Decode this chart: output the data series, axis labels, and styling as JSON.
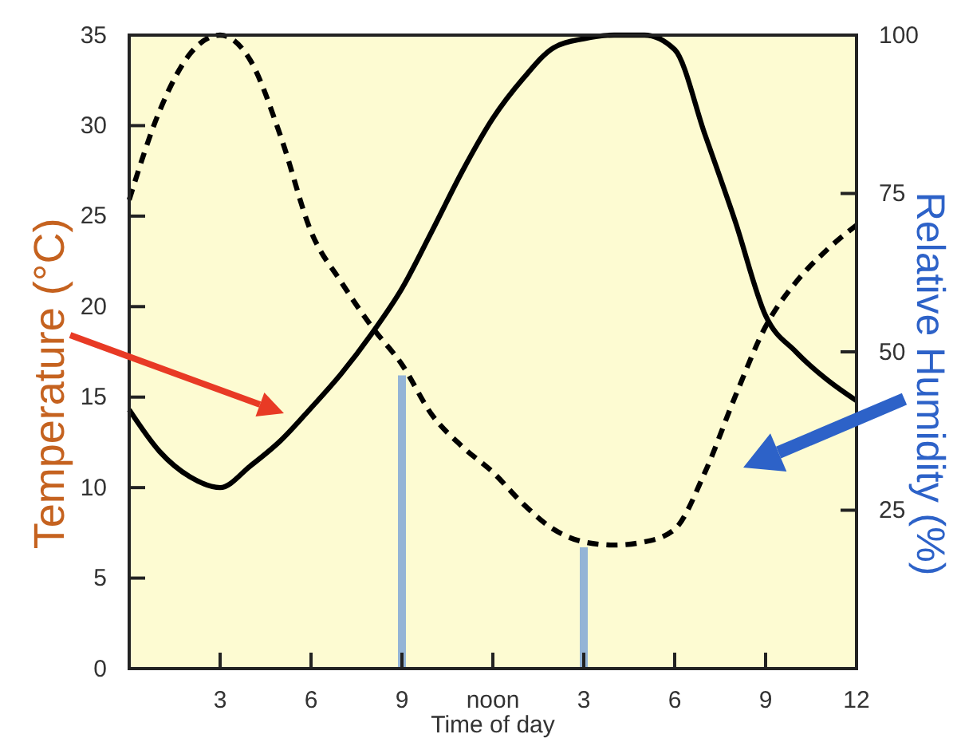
{
  "chart_data": {
    "type": "line",
    "xlabel": "Time of day",
    "ylabel": "Temperature (°C)",
    "y2label": "Relative Humidity (%)",
    "categories": [
      null,
      null,
      null,
      "3",
      null,
      null,
      "6",
      null,
      null,
      "9",
      null,
      null,
      "noon",
      null,
      null,
      "3",
      null,
      null,
      "6",
      null,
      null,
      "9",
      null,
      null,
      "12"
    ],
    "ylim": [
      0,
      35
    ],
    "yticks": [
      0,
      5,
      10,
      15,
      20,
      25,
      30,
      35
    ],
    "y2lim": [
      0,
      100
    ],
    "y2ticks": [
      25,
      50,
      75,
      100
    ],
    "series": [
      {
        "color": "#000000",
        "line_style": "solid",
        "values": [
          14.3,
          12,
          10.6,
          10,
          11.2,
          12.6,
          14.4,
          16.3,
          18.5,
          21,
          24.2,
          27.5,
          30.4,
          32.6,
          34.3,
          34.8,
          35,
          35,
          34.2,
          29.5,
          24.7,
          19.5,
          17.5,
          16,
          14.8
        ]
      },
      {
        "axis": "y2",
        "color": "#000000",
        "line_style": "dashed",
        "values": [
          74,
          88,
          97,
          100,
          96,
          84,
          69,
          61,
          54,
          48,
          40,
          35,
          31,
          26,
          22,
          20,
          19.5,
          20,
          22,
          31,
          43,
          54,
          61,
          66,
          70
        ]
      },
      {
        "type": "bar",
        "color": "#94b4d6",
        "values": [
          null,
          null,
          null,
          null,
          null,
          null,
          null,
          null,
          null,
          16.2,
          null,
          null,
          null,
          null,
          null,
          6.7,
          null,
          null,
          null,
          null,
          null,
          null,
          null,
          null,
          null
        ]
      }
    ]
  }
}
